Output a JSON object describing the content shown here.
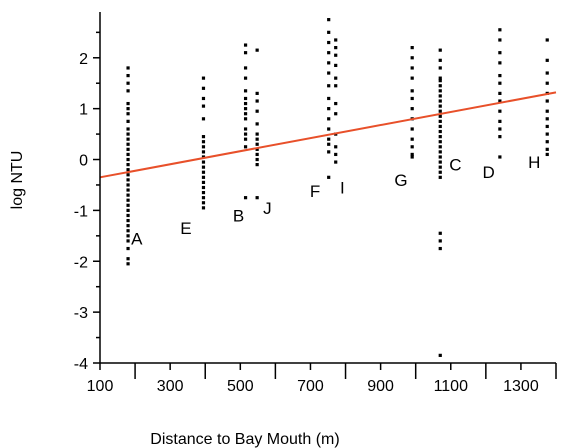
{
  "chart_data": {
    "type": "scatter",
    "title": "",
    "xlabel": "Distance to Bay Mouth (m)",
    "ylabel": "log NTU",
    "xlim": [
      100,
      1400
    ],
    "ylim": [
      -4,
      2.9
    ],
    "x_ticks": [
      100,
      300,
      500,
      700,
      900,
      1100,
      1300
    ],
    "x_minor_ticks": [
      200,
      400,
      600,
      800,
      1000,
      1200,
      1400
    ],
    "y_ticks": [
      -4,
      -3,
      -2,
      -1,
      0,
      1,
      2
    ],
    "y_minor_ticks": [
      -3.5,
      -2.5,
      -1.5,
      -0.5,
      0.5,
      1.5,
      2.5
    ],
    "grid": false,
    "colors": {
      "points": "#000000",
      "trend": "#e8502a",
      "axis": "#000000"
    },
    "trend_line": {
      "x": [
        100,
        1400
      ],
      "y": [
        -0.35,
        1.32
      ]
    },
    "series": [
      {
        "label": "A",
        "x": 180,
        "values": [
          1.8,
          1.65,
          1.5,
          1.35,
          1.1,
          1.0,
          0.9,
          0.75,
          0.6,
          0.5,
          0.4,
          0.3,
          0.2,
          0.1,
          0.0,
          -0.1,
          -0.2,
          -0.3,
          -0.4,
          -0.5,
          -0.6,
          -0.7,
          -0.8,
          -0.9,
          -1.0,
          -1.1,
          -1.2,
          -1.3,
          -1.4,
          -1.5,
          -1.6,
          -1.75,
          -1.95,
          -2.05
        ]
      },
      {
        "label": "E",
        "x": 395,
        "values": [
          1.6,
          1.4,
          1.2,
          1.05,
          0.8,
          0.45,
          0.35,
          0.25,
          0.15,
          0.05,
          -0.05,
          -0.15,
          -0.25,
          -0.35,
          -0.45,
          -0.55,
          -0.65,
          -0.75,
          -0.85,
          -0.95
        ]
      },
      {
        "label": "B",
        "x": 515,
        "values": [
          2.25,
          2.1,
          1.8,
          1.6,
          1.35,
          1.2,
          1.1,
          1.0,
          0.9,
          0.8,
          0.6,
          0.5,
          0.4,
          0.25,
          -0.75
        ]
      },
      {
        "label": "J",
        "x": 548,
        "values": [
          2.15,
          1.3,
          1.15,
          0.95,
          0.7,
          0.5,
          0.4,
          0.3,
          0.2,
          0.1,
          0.0,
          -0.1,
          -0.75
        ]
      },
      {
        "label": "F",
        "x": 752,
        "values": [
          2.75,
          2.5,
          2.3,
          2.1,
          1.9,
          1.7,
          1.45,
          1.2,
          1.0,
          0.8,
          0.6,
          0.4,
          0.3,
          0.15,
          -0.35
        ]
      },
      {
        "label": "I",
        "x": 772,
        "values": [
          2.35,
          2.2,
          2.05,
          1.85,
          1.6,
          1.45,
          1.1,
          0.9,
          0.5,
          0.25,
          0.1,
          -0.05
        ]
      },
      {
        "label": "G",
        "x": 990,
        "values": [
          2.2,
          2.0,
          1.8,
          1.6,
          1.35,
          1.2,
          1.0,
          0.8,
          0.6,
          0.4,
          0.25,
          0.1,
          0.05
        ]
      },
      {
        "label": "C",
        "x": 1070,
        "values": [
          2.15,
          1.95,
          1.8,
          1.6,
          1.55,
          1.45,
          1.35,
          1.25,
          1.15,
          1.05,
          0.95,
          0.85,
          0.75,
          0.65,
          0.55,
          0.45,
          0.35,
          0.25,
          0.15,
          0.05,
          -0.05,
          -0.15,
          -0.25,
          -0.35,
          -1.45,
          -1.6,
          -1.75,
          -3.85
        ]
      },
      {
        "label": "D",
        "x": 1240,
        "values": [
          2.55,
          2.35,
          2.1,
          1.9,
          1.65,
          1.5,
          1.3,
          1.15,
          0.95,
          0.75,
          0.6,
          0.45,
          0.05
        ]
      },
      {
        "label": "H",
        "x": 1375,
        "values": [
          2.35,
          1.95,
          1.7,
          1.5,
          1.3,
          1.15,
          0.95,
          0.8,
          0.65,
          0.5,
          0.35,
          0.2,
          0.1
        ]
      }
    ],
    "point_labels": [
      {
        "text": "A",
        "x": 205,
        "y": -1.55
      },
      {
        "text": "E",
        "x": 345,
        "y": -1.35
      },
      {
        "text": "B",
        "x": 495,
        "y": -1.1
      },
      {
        "text": "J",
        "x": 577,
        "y": -0.95
      },
      {
        "text": "F",
        "x": 713,
        "y": -0.62
      },
      {
        "text": "I",
        "x": 791,
        "y": -0.55
      },
      {
        "text": "G",
        "x": 958,
        "y": -0.4
      },
      {
        "text": "C",
        "x": 1113,
        "y": -0.1
      },
      {
        "text": "D",
        "x": 1208,
        "y": -0.25
      },
      {
        "text": "H",
        "x": 1338,
        "y": -0.05
      }
    ]
  }
}
